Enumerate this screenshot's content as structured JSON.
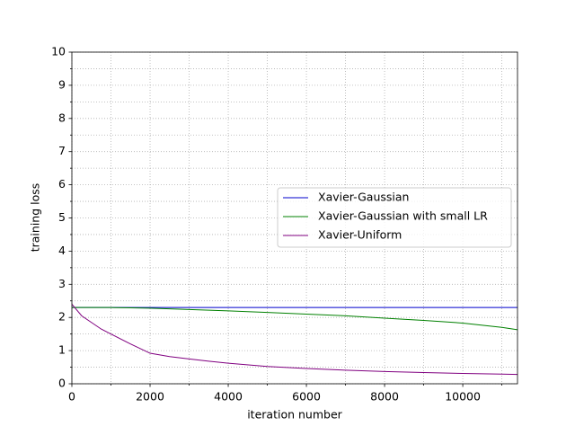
{
  "chart_data": {
    "type": "line",
    "x_label": "iteration number",
    "y_label": "training loss",
    "x": [
      0,
      250,
      500,
      750,
      1000,
      1500,
      2000,
      2500,
      3000,
      3500,
      4000,
      5000,
      6000,
      7000,
      8000,
      9000,
      10000,
      11000,
      11400
    ],
    "series": [
      {
        "name": "Xavier-Gaussian",
        "color": "#0000cc",
        "values": [
          2.3,
          2.3,
          2.3,
          2.3,
          2.3,
          2.3,
          2.3,
          2.3,
          2.3,
          2.3,
          2.3,
          2.3,
          2.3,
          2.3,
          2.3,
          2.3,
          2.3,
          2.3,
          2.3
        ]
      },
      {
        "name": "Xavier-Gaussian with small LR",
        "color": "#008000",
        "values": [
          2.3,
          2.3,
          2.3,
          2.3,
          2.3,
          2.29,
          2.28,
          2.26,
          2.24,
          2.22,
          2.2,
          2.15,
          2.1,
          2.05,
          1.98,
          1.91,
          1.83,
          1.7,
          1.63
        ]
      },
      {
        "name": "Xavier-Uniform",
        "color": "#800080",
        "values": [
          2.4,
          2.05,
          1.85,
          1.65,
          1.5,
          1.2,
          0.92,
          0.82,
          0.75,
          0.68,
          0.62,
          0.52,
          0.46,
          0.41,
          0.37,
          0.34,
          0.31,
          0.29,
          0.28
        ]
      }
    ],
    "xlim": [
      0,
      11400
    ],
    "ylim": [
      0,
      10
    ],
    "xticks": [
      0,
      2000,
      4000,
      6000,
      8000,
      10000
    ],
    "yticks": [
      0,
      1,
      2,
      3,
      4,
      5,
      6,
      7,
      8,
      9,
      10
    ],
    "xminorticks": [
      1000,
      3000,
      5000,
      7000,
      9000,
      11000
    ],
    "yminorticks": [
      0.5,
      1.5,
      2.5,
      3.5,
      4.5,
      5.5,
      6.5,
      7.5,
      8.5,
      9.5
    ],
    "grid": true,
    "legend": "center right"
  }
}
